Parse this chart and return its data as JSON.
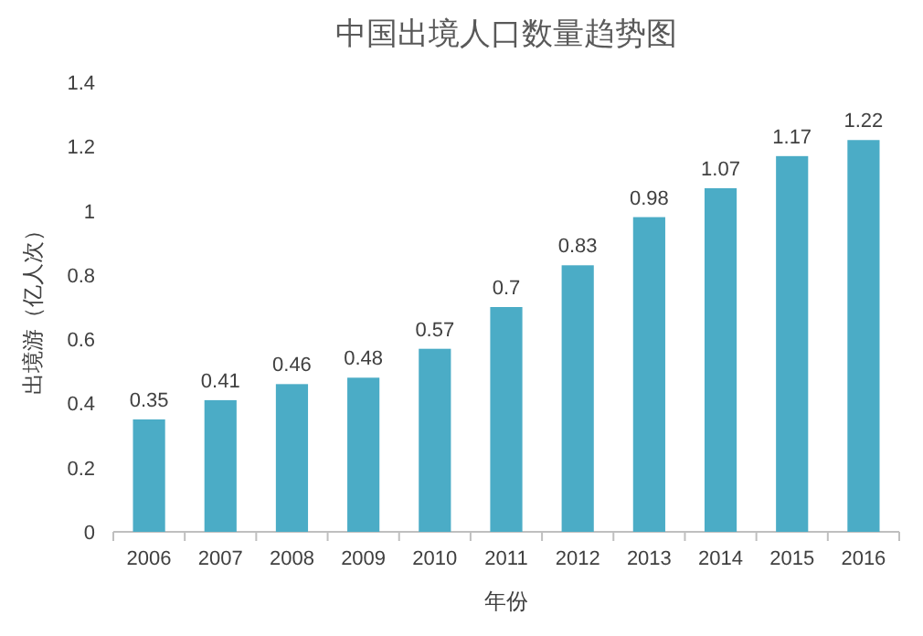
{
  "chart_data": {
    "type": "bar",
    "title": "中国出境人口数量趋势图",
    "xlabel": "年份",
    "ylabel": "出境游（亿人次）",
    "categories": [
      "2006",
      "2007",
      "2008",
      "2009",
      "2010",
      "2011",
      "2012",
      "2013",
      "2014",
      "2015",
      "2016"
    ],
    "values": [
      0.35,
      0.41,
      0.46,
      0.48,
      0.57,
      0.7,
      0.83,
      0.98,
      1.07,
      1.17,
      1.22
    ],
    "color": "#4bacc6",
    "ylim": [
      0,
      1.4
    ],
    "yticks": [
      0,
      0.2,
      0.4,
      0.6,
      0.8,
      1,
      1.2,
      1.4
    ],
    "data_labels": true
  }
}
